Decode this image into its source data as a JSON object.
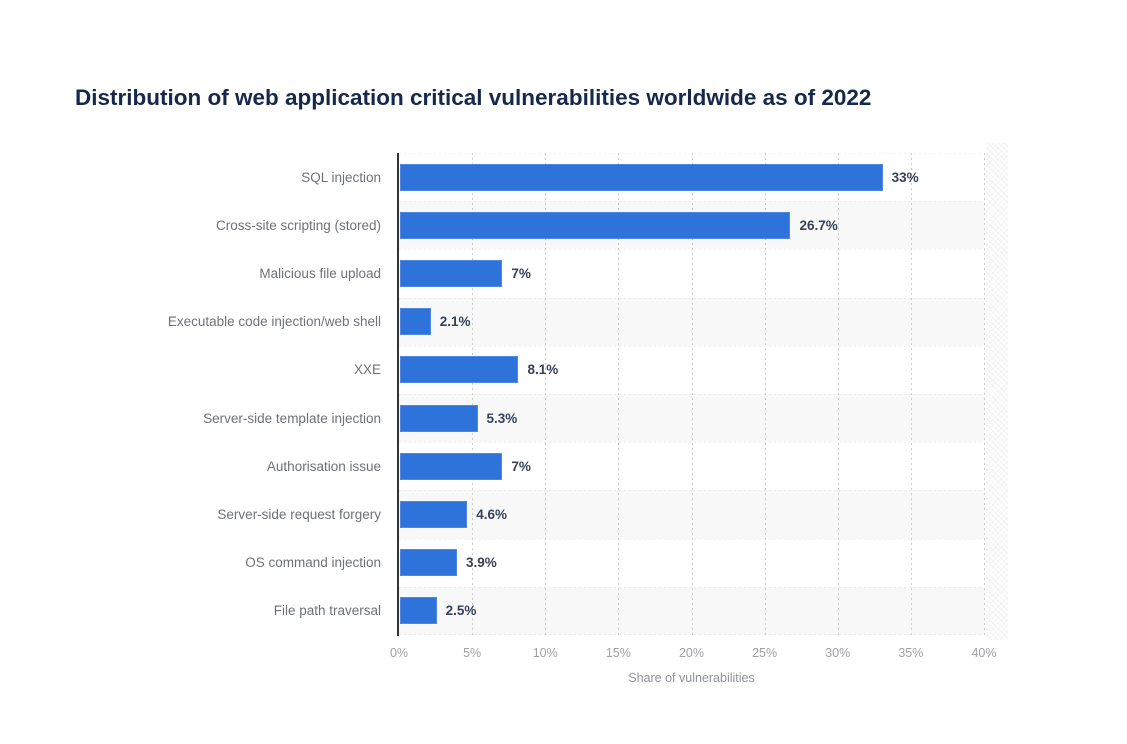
{
  "chart_data": {
    "type": "bar",
    "orientation": "horizontal",
    "title": "Distribution of web application critical vulnerabilities worldwide as of 2022",
    "xlabel": "Share of vulnerabilities",
    "xlim": [
      0,
      40
    ],
    "x_tick_step": 5,
    "x_ticks": [
      "0%",
      "5%",
      "10%",
      "15%",
      "20%",
      "25%",
      "30%",
      "35%",
      "40%"
    ],
    "categories": [
      "SQL injection",
      "Cross-site scripting (stored)",
      "Malicious file upload",
      "Executable code injection/web shell",
      "XXE",
      "Server-side template injection",
      "Authorisation issue",
      "Server-side request forgery",
      "OS command injection",
      "File path traversal"
    ],
    "values": [
      33,
      26.7,
      7,
      2.1,
      8.1,
      5.3,
      7,
      4.6,
      3.9,
      2.5
    ],
    "value_labels": [
      "33%",
      "26.7%",
      "7%",
      "2.1%",
      "8.1%",
      "5.3%",
      "7%",
      "4.6%",
      "3.9%",
      "2.5%"
    ],
    "grid": "dotted-vertical",
    "row_striping": "alternate",
    "legend": "none",
    "colors": {
      "bar": "#2d73da",
      "bar_edge": "#4f87e1",
      "title": "#16294d",
      "category_label": "#6e7277",
      "value_label": "#36415a",
      "tick_label": "#9da0a5",
      "axis_line": "#323334",
      "row_stripe": "#f8f8f9",
      "gridline": "#c9cbce",
      "background": "#ffffff"
    }
  }
}
